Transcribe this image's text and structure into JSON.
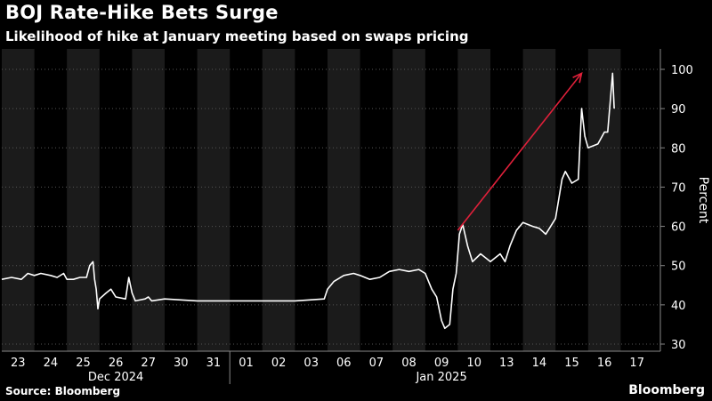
{
  "header": {
    "title": "BOJ Rate-Hike Bets Surge",
    "subtitle": "Likelihood of hike at January meeting based on swaps pricing"
  },
  "footer": {
    "source": "Source: Bloomberg",
    "brand": "Bloomberg"
  },
  "colors": {
    "background": "#000000",
    "band": "#1b1b1b",
    "line": "#ffffff",
    "arrow": "#e0203a",
    "grid": "#555555",
    "text": "#ffffff"
  },
  "chart_data": {
    "type": "line",
    "title": "BOJ Rate-Hike Bets Surge",
    "subtitle": "Likelihood of hike at January meeting based on swaps pricing",
    "ylabel": "Percent",
    "ylim": [
      28,
      105
    ],
    "yticks": [
      30,
      40,
      50,
      60,
      70,
      80,
      90,
      100
    ],
    "grid": true,
    "x_tick_labels": [
      "23",
      "24",
      "25",
      "26",
      "27",
      "30",
      "31",
      "01",
      "02",
      "03",
      "06",
      "07",
      "08",
      "09",
      "10",
      "13",
      "14",
      "15",
      "16",
      "17"
    ],
    "x_group_labels": [
      "Dec 2024",
      "Jan 2025"
    ],
    "series": [
      {
        "points": [
          [
            0.0,
            46.5
          ],
          [
            0.3,
            47
          ],
          [
            0.6,
            46.5
          ],
          [
            0.8,
            48
          ],
          [
            1.0,
            47.5
          ],
          [
            1.2,
            48
          ],
          [
            1.5,
            47.5
          ],
          [
            1.7,
            47
          ],
          [
            1.9,
            48
          ],
          [
            2.0,
            46.5
          ],
          [
            2.2,
            46.5
          ],
          [
            2.4,
            47
          ],
          [
            2.6,
            47
          ],
          [
            2.7,
            50
          ],
          [
            2.8,
            51
          ],
          [
            2.85,
            46.5
          ],
          [
            2.9,
            44
          ],
          [
            2.95,
            39
          ],
          [
            3.0,
            41.5
          ],
          [
            3.2,
            43
          ],
          [
            3.35,
            44
          ],
          [
            3.5,
            42
          ],
          [
            3.8,
            41.5
          ],
          [
            3.9,
            47
          ],
          [
            4.0,
            43
          ],
          [
            4.1,
            41
          ],
          [
            4.4,
            41.5
          ],
          [
            4.5,
            42
          ],
          [
            4.6,
            41
          ],
          [
            5.0,
            41.5
          ],
          [
            6.0,
            41
          ],
          [
            7.0,
            41
          ],
          [
            8.0,
            41
          ],
          [
            9.0,
            41
          ],
          [
            9.9,
            41.5
          ],
          [
            10.0,
            44
          ],
          [
            10.2,
            46
          ],
          [
            10.5,
            47.5
          ],
          [
            10.8,
            48
          ],
          [
            11.0,
            47.5
          ],
          [
            11.3,
            46.5
          ],
          [
            11.6,
            47
          ],
          [
            11.9,
            48.5
          ],
          [
            12.2,
            49
          ],
          [
            12.5,
            48.5
          ],
          [
            12.8,
            49
          ],
          [
            13.0,
            48
          ],
          [
            13.2,
            44
          ],
          [
            13.35,
            42
          ],
          [
            13.5,
            36
          ],
          [
            13.6,
            34
          ],
          [
            13.75,
            35
          ],
          [
            13.85,
            44
          ],
          [
            13.95,
            48
          ],
          [
            14.05,
            58
          ],
          [
            14.15,
            60.5
          ],
          [
            14.3,
            55
          ],
          [
            14.45,
            51
          ],
          [
            14.7,
            53
          ],
          [
            15.0,
            51
          ],
          [
            15.3,
            53
          ],
          [
            15.45,
            51
          ],
          [
            15.6,
            55
          ],
          [
            15.8,
            59
          ],
          [
            16.0,
            61
          ],
          [
            16.3,
            60
          ],
          [
            16.5,
            59.5
          ],
          [
            16.7,
            58
          ],
          [
            16.85,
            60
          ],
          [
            17.0,
            62
          ],
          [
            17.2,
            72
          ],
          [
            17.3,
            74
          ],
          [
            17.5,
            71
          ],
          [
            17.7,
            72
          ],
          [
            17.8,
            90
          ],
          [
            17.9,
            83
          ],
          [
            18.0,
            80
          ],
          [
            18.3,
            81
          ],
          [
            18.5,
            84
          ],
          [
            18.6,
            84
          ],
          [
            18.75,
            99
          ],
          [
            18.8,
            90
          ]
        ]
      }
    ],
    "annotations": [
      {
        "type": "arrow",
        "from": [
          14.0,
          59
        ],
        "to": [
          17.8,
          99
        ]
      }
    ]
  }
}
